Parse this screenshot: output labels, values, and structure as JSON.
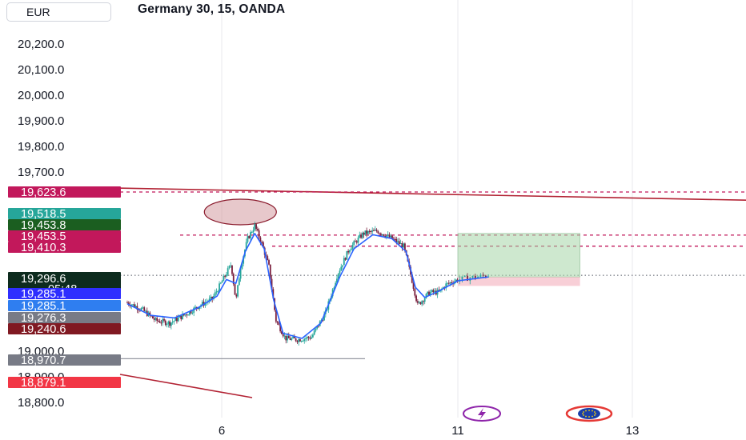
{
  "header": {
    "currency": "EUR",
    "symbol_title": "Germany 30, 15, OANDA"
  },
  "chart_data": {
    "type": "candlestick",
    "title": "Germany 30, 15, OANDA",
    "y_ticks": [
      {
        "label": "20,200.0",
        "value": 20200
      },
      {
        "label": "20,100.0",
        "value": 20100
      },
      {
        "label": "20,000.0",
        "value": 20000
      },
      {
        "label": "19,900.0",
        "value": 19900
      },
      {
        "label": "19,800.0",
        "value": 19800
      },
      {
        "label": "19,700.0",
        "value": 19700
      },
      {
        "label": "19,000.0",
        "value": 19000
      },
      {
        "label": "18,900.0",
        "value": 18900
      },
      {
        "label": "18,800.0",
        "value": 18800
      }
    ],
    "x_ticks": [
      {
        "label": "6",
        "day": 6
      },
      {
        "label": "11",
        "day": 11
      },
      {
        "label": "13",
        "day": 13
      }
    ],
    "price_labels": [
      {
        "text": "19,623.6",
        "value": 19623.6,
        "color": "#c2185b"
      },
      {
        "text": "19,518.5",
        "value": 19518.5,
        "color": "#26a69a"
      },
      {
        "text": "19,453.8",
        "value": 19453.8,
        "color": "#1b5e20"
      },
      {
        "text": "19,453.5",
        "value": 19453.5,
        "color": "#c2185b"
      },
      {
        "text": "19,410.3",
        "value": 19410.3,
        "color": "#c2185b"
      },
      {
        "text": "19,296.6",
        "value": 19296.6,
        "color": "#0d2b1e",
        "countdown": "05:48"
      },
      {
        "text": "19,285.1",
        "value": 19285.1,
        "color": "#2e2eff"
      },
      {
        "text": "19,285.1",
        "value": 19285.1,
        "color": "#2f7ef0"
      },
      {
        "text": "19,276.3",
        "value": 19276.3,
        "color": "#787b86"
      },
      {
        "text": "19,240.6",
        "value": 19240.6,
        "color": "#801922"
      },
      {
        "text": "18,970.7",
        "value": 18970.7,
        "color": "#787b86"
      },
      {
        "text": "18,879.1",
        "value": 18879.1,
        "color": "#f23645"
      }
    ],
    "horizontal_levels": [
      19630,
      19453.5,
      19410.3
    ],
    "close_price": 19296.6,
    "support_level": 18970.7,
    "price_series": [
      [
        4.0,
        19190
      ],
      [
        4.3,
        19165
      ],
      [
        4.6,
        19120
      ],
      [
        4.9,
        19110
      ],
      [
        5.2,
        19140
      ],
      [
        5.5,
        19175
      ],
      [
        5.8,
        19205
      ],
      [
        6.0,
        19270
      ],
      [
        6.2,
        19340
      ],
      [
        6.3,
        19195
      ],
      [
        6.4,
        19330
      ],
      [
        6.55,
        19440
      ],
      [
        6.7,
        19490
      ],
      [
        6.85,
        19420
      ],
      [
        7.0,
        19330
      ],
      [
        7.15,
        19120
      ],
      [
        7.35,
        19050
      ],
      [
        7.6,
        19045
      ],
      [
        7.9,
        19055
      ],
      [
        8.2,
        19150
      ],
      [
        8.45,
        19300
      ],
      [
        8.7,
        19400
      ],
      [
        9.0,
        19460
      ],
      [
        9.3,
        19470
      ],
      [
        9.6,
        19440
      ],
      [
        9.85,
        19410
      ],
      [
        10.0,
        19300
      ],
      [
        10.15,
        19180
      ],
      [
        10.4,
        19230
      ],
      [
        10.6,
        19230
      ],
      [
        10.75,
        19260
      ],
      [
        11.0,
        19280
      ],
      [
        11.2,
        19290
      ],
      [
        11.35,
        19296.6
      ]
    ],
    "ma_series": [
      [
        4.0,
        19185
      ],
      [
        4.5,
        19140
      ],
      [
        5.0,
        19130
      ],
      [
        5.5,
        19170
      ],
      [
        5.9,
        19215
      ],
      [
        6.1,
        19280
      ],
      [
        6.3,
        19265
      ],
      [
        6.5,
        19390
      ],
      [
        6.7,
        19460
      ],
      [
        6.9,
        19400
      ],
      [
        7.1,
        19200
      ],
      [
        7.3,
        19070
      ],
      [
        7.7,
        19050
      ],
      [
        8.1,
        19110
      ],
      [
        8.5,
        19290
      ],
      [
        8.8,
        19400
      ],
      [
        9.2,
        19455
      ],
      [
        9.6,
        19440
      ],
      [
        9.9,
        19390
      ],
      [
        10.1,
        19250
      ],
      [
        10.3,
        19210
      ],
      [
        10.6,
        19235
      ],
      [
        11.0,
        19275
      ],
      [
        11.35,
        19290
      ]
    ],
    "trendline_top": [
      [
        3.0,
        19640
      ],
      [
        14.8,
        19590
      ]
    ],
    "trendline_bottom": [
      [
        4.0,
        18900
      ],
      [
        5.6,
        18800
      ]
    ],
    "position": {
      "entry": 19290,
      "target": 19460,
      "stop": 19255,
      "start_day": 11.0,
      "end_day": 12.4
    },
    "ellipse_center": [
      6.7,
      19515
    ]
  },
  "colors": {
    "up": "#26a69a",
    "down": "#7a1f3d",
    "ma": "#2962ff",
    "trend": "#b22233",
    "dash": "#c2185b"
  },
  "icons": [
    "lightning-icon",
    "eu-flag-icon"
  ]
}
